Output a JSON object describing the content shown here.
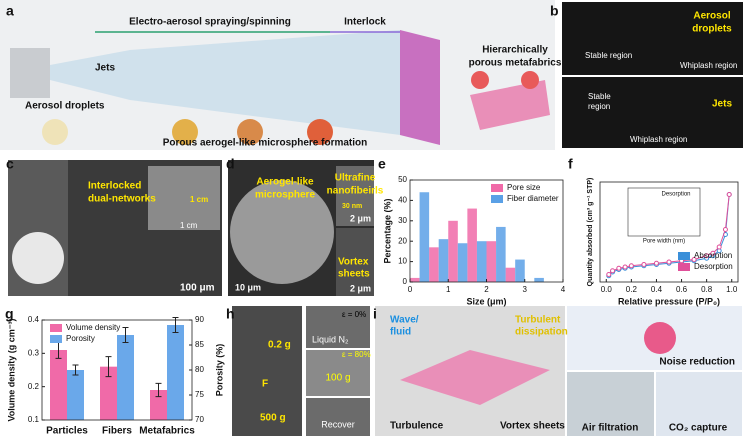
{
  "panels": {
    "a": {
      "letter": "a",
      "texts": [
        "Electro-aerosol spraying/spinning",
        "Interlock",
        "Hierarchically",
        "porous metafabrics",
        "Jets",
        "Aerosol droplets",
        "Porous aerogel-like microsphere formation"
      ]
    },
    "b": {
      "letter": "b",
      "texts": [
        "Aerosol",
        "droplets",
        "Stable region",
        "Whiplash region",
        "Jets",
        "Stable",
        "region",
        "Whiplash region"
      ]
    },
    "c": {
      "letter": "c",
      "texts": [
        "Interlocked",
        "dual-networks",
        "1 cm",
        "1 cm",
        "100 μm"
      ]
    },
    "d": {
      "letter": "d",
      "texts": [
        "Aerogel-like",
        "microsphere",
        "Ultrafine",
        "nanofibeirls",
        "30 nm",
        "2 μm",
        "10 μm",
        "Vortex",
        "sheets",
        "2 μm"
      ]
    },
    "e": {
      "letter": "e"
    },
    "f": {
      "letter": "f",
      "inset": [
        "Desorption",
        "Pore width (nm)"
      ]
    },
    "g": {
      "letter": "g"
    },
    "h": {
      "letter": "h",
      "texts": [
        "0.2 g",
        "F",
        "500 g",
        "ε = 0%",
        "Liquid N₂",
        "ε = 80%",
        "100 g",
        "Recover"
      ]
    },
    "i": {
      "letter": "i",
      "texts": [
        "Wave/",
        "fluid",
        "Turbulent",
        "dissipation",
        "Noise reduction",
        "Turbulence",
        "Vortex sheets",
        "Air filtration",
        "CO₂ capture"
      ]
    }
  },
  "chart_data": [
    {
      "type": "histogram",
      "xlabel": "Size (μm)",
      "ylabel": "Percentage (%)",
      "bins": [
        0,
        0.5,
        1,
        1.5,
        2,
        2.5,
        3,
        3.5
      ],
      "series": [
        {
          "name": "Pore size",
          "color": "#f06aa8",
          "values": [
            2,
            17,
            30,
            36,
            20,
            7,
            0
          ]
        },
        {
          "name": "Fiber diameter",
          "color": "#5aa0e6",
          "values": [
            44,
            21,
            19,
            20,
            27,
            11,
            2
          ]
        }
      ],
      "xlim": [
        0,
        4
      ],
      "xticks": [
        0,
        1,
        2,
        3,
        4
      ],
      "ylim": [
        0,
        50
      ],
      "yticks": [
        0,
        10,
        20,
        30,
        40,
        50
      ]
    },
    {
      "type": "line",
      "xlabel": "Relative pressure (P/P₀)",
      "ylabel": "Quantity absorbed (cm³ g⁻¹ STP)",
      "x": [
        0.02,
        0.05,
        0.1,
        0.15,
        0.2,
        0.3,
        0.4,
        0.5,
        0.6,
        0.7,
        0.8,
        0.85,
        0.9,
        0.95,
        0.98
      ],
      "series": [
        {
          "name": "Absorption",
          "color": "#3a8fd9",
          "values": [
            5,
            8,
            10,
            11,
            12,
            13,
            14,
            15,
            16,
            17,
            19,
            21,
            25,
            38,
            70
          ]
        },
        {
          "name": "Desorption",
          "color": "#e0509a",
          "values": [
            6,
            9,
            11,
            12,
            13,
            14,
            15,
            16,
            17,
            18,
            21,
            23,
            28,
            42,
            70
          ]
        }
      ],
      "xlim": [
        -0.05,
        1.05
      ],
      "xticks": [
        {
          "value": 0,
          "label": "0.0"
        },
        0.2,
        0.4,
        0.6,
        0.8,
        {
          "value": 1,
          "label": "1.0"
        }
      ],
      "ylim": [
        0,
        80
      ]
    },
    {
      "type": "bar",
      "categories": [
        "Particles",
        "Fibers",
        "Metafabrics"
      ],
      "ylabel": "Volume density (g cm⁻³)",
      "y2label": "Porosity (%)",
      "series": [
        {
          "name": "Volume density",
          "color": "#f06aa8",
          "values": [
            0.31,
            0.26,
            0.19
          ],
          "errors": [
            0.025,
            0.03,
            0.02
          ]
        },
        {
          "name": "Porosity",
          "color": "#6aa8ea",
          "values": [
            80,
            87,
            89
          ],
          "errors": [
            1,
            1.5,
            1.5
          ],
          "axis": "y2"
        }
      ],
      "ylim": [
        0.1,
        0.4
      ],
      "yticks": [
        0.1,
        0.2,
        0.3,
        0.4
      ],
      "y2lim": [
        70,
        90
      ],
      "y2ticks": [
        70,
        75,
        80,
        85,
        90
      ]
    }
  ]
}
